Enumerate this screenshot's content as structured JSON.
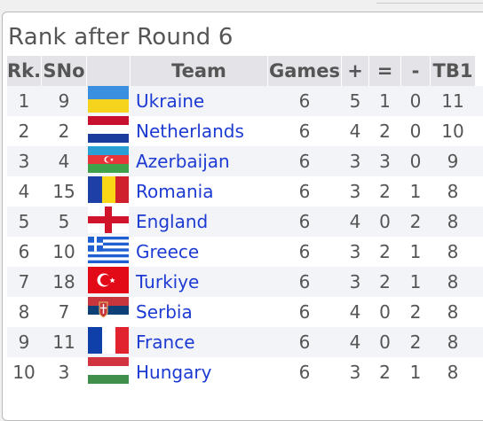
{
  "page_title": "Rank after Round 6",
  "columns": [
    "Rk.",
    "SNo",
    "",
    "Team",
    "Games",
    "+",
    "=",
    "-",
    "TB1"
  ],
  "rows": [
    {
      "rk": "1",
      "sno": "9",
      "flag": "ukraine-flag-icon",
      "team": "Ukraine",
      "games": "6",
      "w": "5",
      "d": "1",
      "l": "0",
      "tb1": "11"
    },
    {
      "rk": "2",
      "sno": "2",
      "flag": "netherlands-flag-icon",
      "team": "Netherlands",
      "games": "6",
      "w": "4",
      "d": "2",
      "l": "0",
      "tb1": "10"
    },
    {
      "rk": "3",
      "sno": "4",
      "flag": "azerbaijan-flag-icon",
      "team": "Azerbaijan",
      "games": "6",
      "w": "3",
      "d": "3",
      "l": "0",
      "tb1": "9"
    },
    {
      "rk": "4",
      "sno": "15",
      "flag": "romania-flag-icon",
      "team": "Romania",
      "games": "6",
      "w": "3",
      "d": "2",
      "l": "1",
      "tb1": "8"
    },
    {
      "rk": "5",
      "sno": "5",
      "flag": "england-flag-icon",
      "team": "England",
      "games": "6",
      "w": "4",
      "d": "0",
      "l": "2",
      "tb1": "8"
    },
    {
      "rk": "6",
      "sno": "10",
      "flag": "greece-flag-icon",
      "team": "Greece",
      "games": "6",
      "w": "3",
      "d": "2",
      "l": "1",
      "tb1": "8"
    },
    {
      "rk": "7",
      "sno": "18",
      "flag": "turkiye-flag-icon",
      "team": "Turkiye",
      "games": "6",
      "w": "3",
      "d": "2",
      "l": "1",
      "tb1": "8"
    },
    {
      "rk": "8",
      "sno": "7",
      "flag": "serbia-flag-icon",
      "team": "Serbia",
      "games": "6",
      "w": "4",
      "d": "0",
      "l": "2",
      "tb1": "8"
    },
    {
      "rk": "9",
      "sno": "11",
      "flag": "france-flag-icon",
      "team": "France",
      "games": "6",
      "w": "4",
      "d": "0",
      "l": "2",
      "tb1": "8"
    },
    {
      "rk": "10",
      "sno": "3",
      "flag": "hungary-flag-icon",
      "team": "Hungary",
      "games": "6",
      "w": "3",
      "d": "2",
      "l": "1",
      "tb1": "8"
    }
  ],
  "colors": {
    "link": "#1d3bd3",
    "header_bg": "#e3e3e8",
    "odd_row": "#f3f4f8",
    "text": "#555555"
  }
}
